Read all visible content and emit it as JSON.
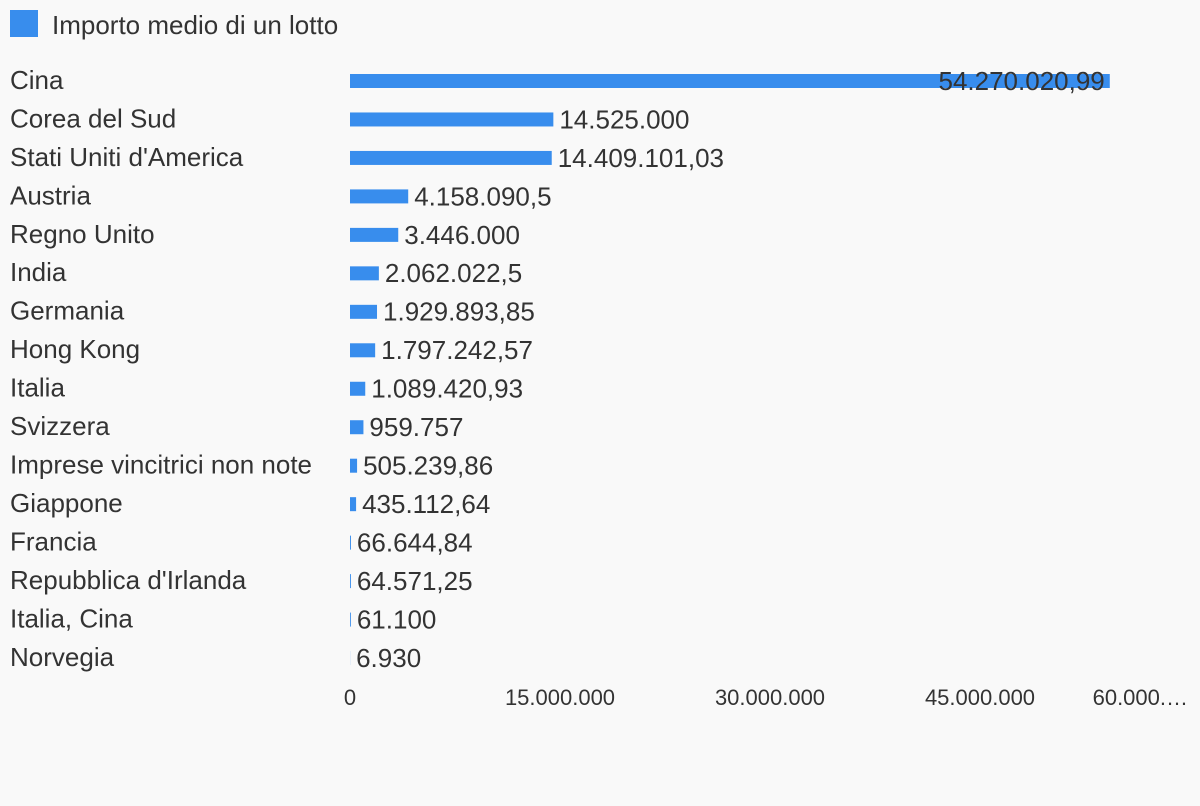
{
  "chart_data": {
    "type": "hbar",
    "categories": [
      "Cina",
      "Corea del Sud",
      "Stati Uniti d'America",
      "Austria",
      "Regno Unito",
      "India",
      "Germania",
      "Hong Kong",
      "Italia",
      "Svizzera",
      "Imprese vincitrici non note",
      "Giappone",
      "Francia",
      "Repubblica d'Irlanda",
      "Italia, Cina",
      "Norvegia"
    ],
    "series": [
      {
        "name": "Importo medio di un lotto",
        "color": "#388ded",
        "values": [
          54270020.99,
          14525000,
          14409101.03,
          4158090.5,
          3446000,
          2062022.5,
          1929893.85,
          1797242.57,
          1089420.93,
          959757,
          505239.86,
          435112.64,
          66644.84,
          64571.25,
          61100,
          6930
        ],
        "value_labels": [
          "54.270.020,99",
          "14.525.000",
          "14.409.101,03",
          "4.158.090,5",
          "3.446.000",
          "2.062.022,5",
          "1.929.893,85",
          "1.797.242,57",
          "1.089.420,93",
          "959.757",
          "505.239,86",
          "435.112,64",
          "66.644,84",
          "64.571,25",
          "61.100",
          "6.930"
        ]
      }
    ],
    "xlim": [
      0,
      60000000
    ],
    "xticks": [
      0,
      {
        "value": 15000000,
        "label": "15.000.000"
      },
      {
        "value": 30000000,
        "label": "30.000.000"
      },
      {
        "value": 45000000,
        "label": "45.000.000"
      },
      {
        "value": 60000000,
        "label": "60.000.…"
      }
    ],
    "legend": "top-left"
  }
}
